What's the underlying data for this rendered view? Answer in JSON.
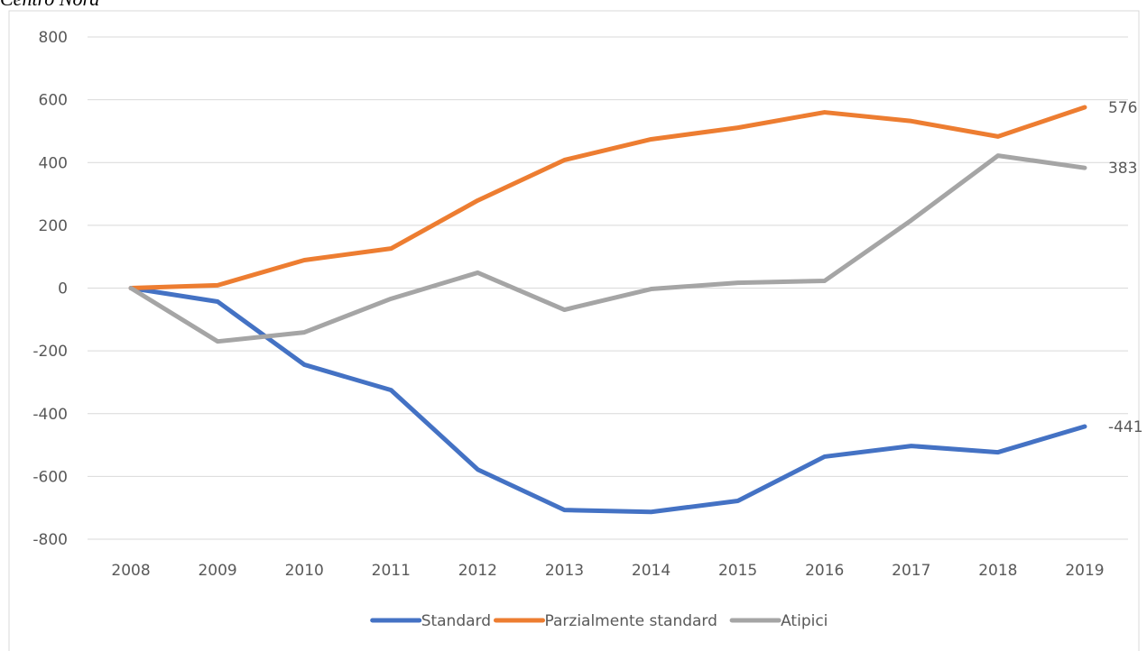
{
  "chart_data": {
    "type": "line",
    "title": "Centro Nord",
    "categories": [
      "2008",
      "2009",
      "2010",
      "2011",
      "2012",
      "2013",
      "2014",
      "2015",
      "2016",
      "2017",
      "2018",
      "2019"
    ],
    "series": [
      {
        "name": "Standard",
        "color": "#4472c4",
        "values": [
          0,
          -43,
          -244,
          -325,
          -578,
          -707,
          -713,
          -678,
          -537,
          -503,
          -523,
          -441
        ]
      },
      {
        "name": "Parzialmente standard",
        "color": "#ed7d31",
        "values": [
          0,
          9,
          89,
          126,
          279,
          408,
          474,
          511,
          560,
          532,
          483,
          576
        ]
      },
      {
        "name": "Atipici",
        "color": "#a5a5a5",
        "values": [
          0,
          -170,
          -141,
          -34,
          49,
          -69,
          -3,
          17,
          23,
          216,
          422,
          383
        ]
      }
    ],
    "ylim": [
      -800,
      800
    ],
    "yticks": [
      -800,
      -600,
      -400,
      -200,
      0,
      200,
      400,
      600,
      800
    ],
    "grid": true,
    "legend": "bottom"
  }
}
